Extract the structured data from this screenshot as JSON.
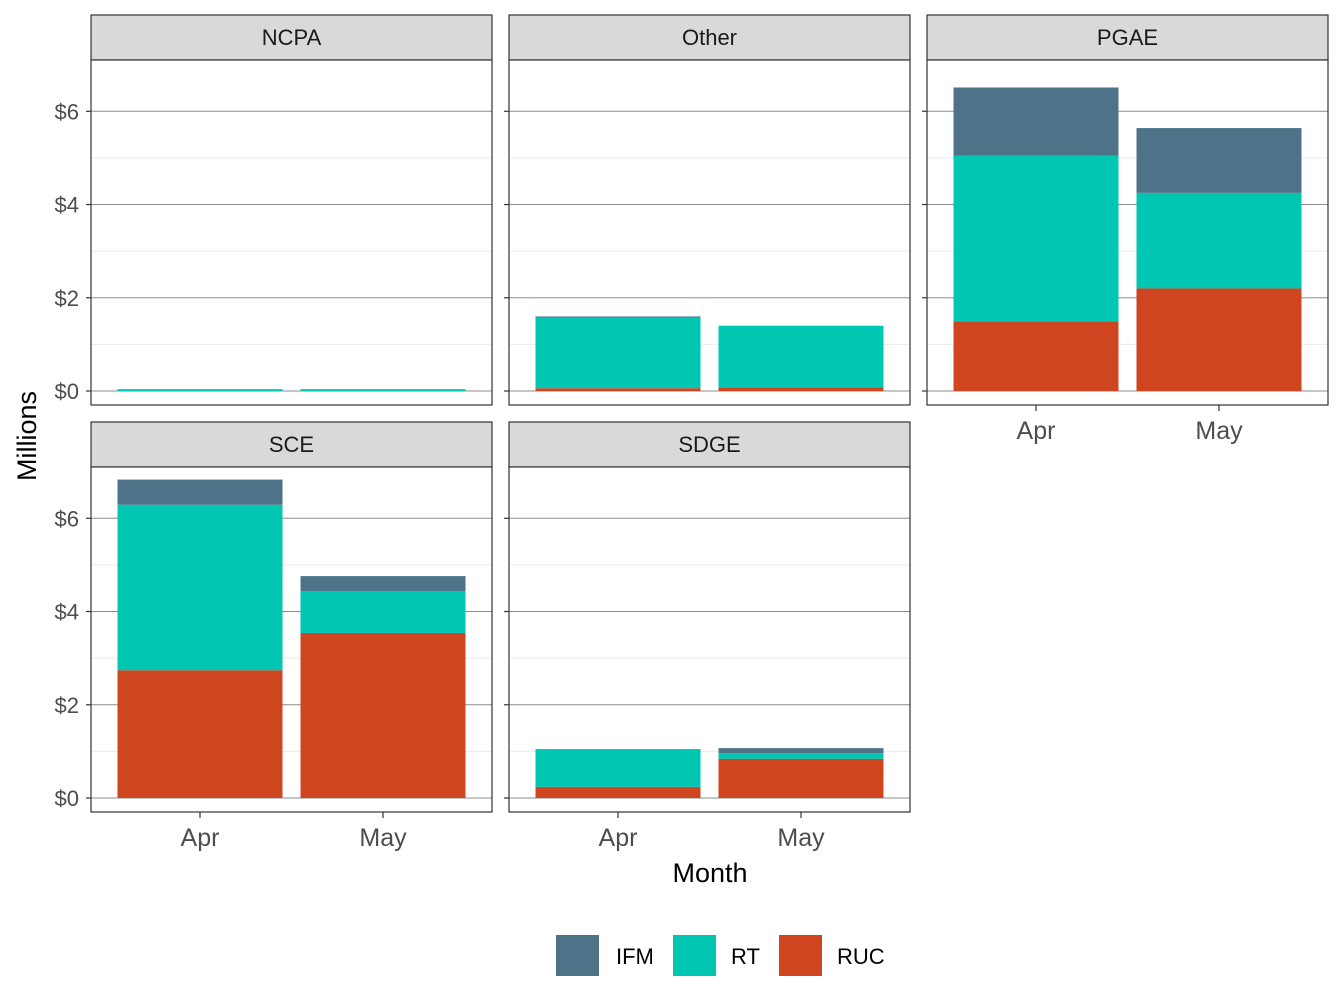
{
  "chart_data": {
    "type": "bar",
    "stacked": true,
    "facet_by": "utility",
    "xlabel": "Month",
    "ylabel": "Millions",
    "ylim": [
      -0.3,
      7.1
    ],
    "y_ticks": [
      0,
      2,
      4,
      6
    ],
    "y_tick_labels": [
      "$0",
      "$2",
      "$4",
      "$6"
    ],
    "categories": [
      "Apr",
      "May"
    ],
    "series_order": [
      "RUC",
      "RT",
      "IFM"
    ],
    "legend": {
      "position": "bottom",
      "entries": [
        {
          "name": "IFM",
          "color": "#4e7389"
        },
        {
          "name": "RT",
          "color": "#00c6b2"
        },
        {
          "name": "RUC",
          "color": "#cf4520"
        }
      ]
    },
    "grid": true,
    "panels": [
      {
        "label": "NCPA",
        "values": {
          "RUC": [
            0.0,
            0.0
          ],
          "RT": [
            0.04,
            0.04
          ],
          "IFM": [
            0.0,
            0.0
          ]
        }
      },
      {
        "label": "Other",
        "values": {
          "RUC": [
            0.06,
            0.08
          ],
          "RT": [
            1.53,
            1.32
          ],
          "IFM": [
            0.01,
            0.0
          ]
        }
      },
      {
        "label": "PGAE",
        "values": {
          "RUC": [
            1.49,
            2.2
          ],
          "RT": [
            3.56,
            2.05
          ],
          "IFM": [
            1.46,
            1.39
          ]
        }
      },
      {
        "label": "SCE",
        "values": {
          "RUC": [
            2.74,
            3.54
          ],
          "RT": [
            3.55,
            0.9
          ],
          "IFM": [
            0.54,
            0.32
          ]
        }
      },
      {
        "label": "SDGE",
        "values": {
          "RUC": [
            0.24,
            0.84
          ],
          "RT": [
            0.81,
            0.12
          ],
          "IFM": [
            0.0,
            0.11
          ]
        }
      }
    ]
  }
}
